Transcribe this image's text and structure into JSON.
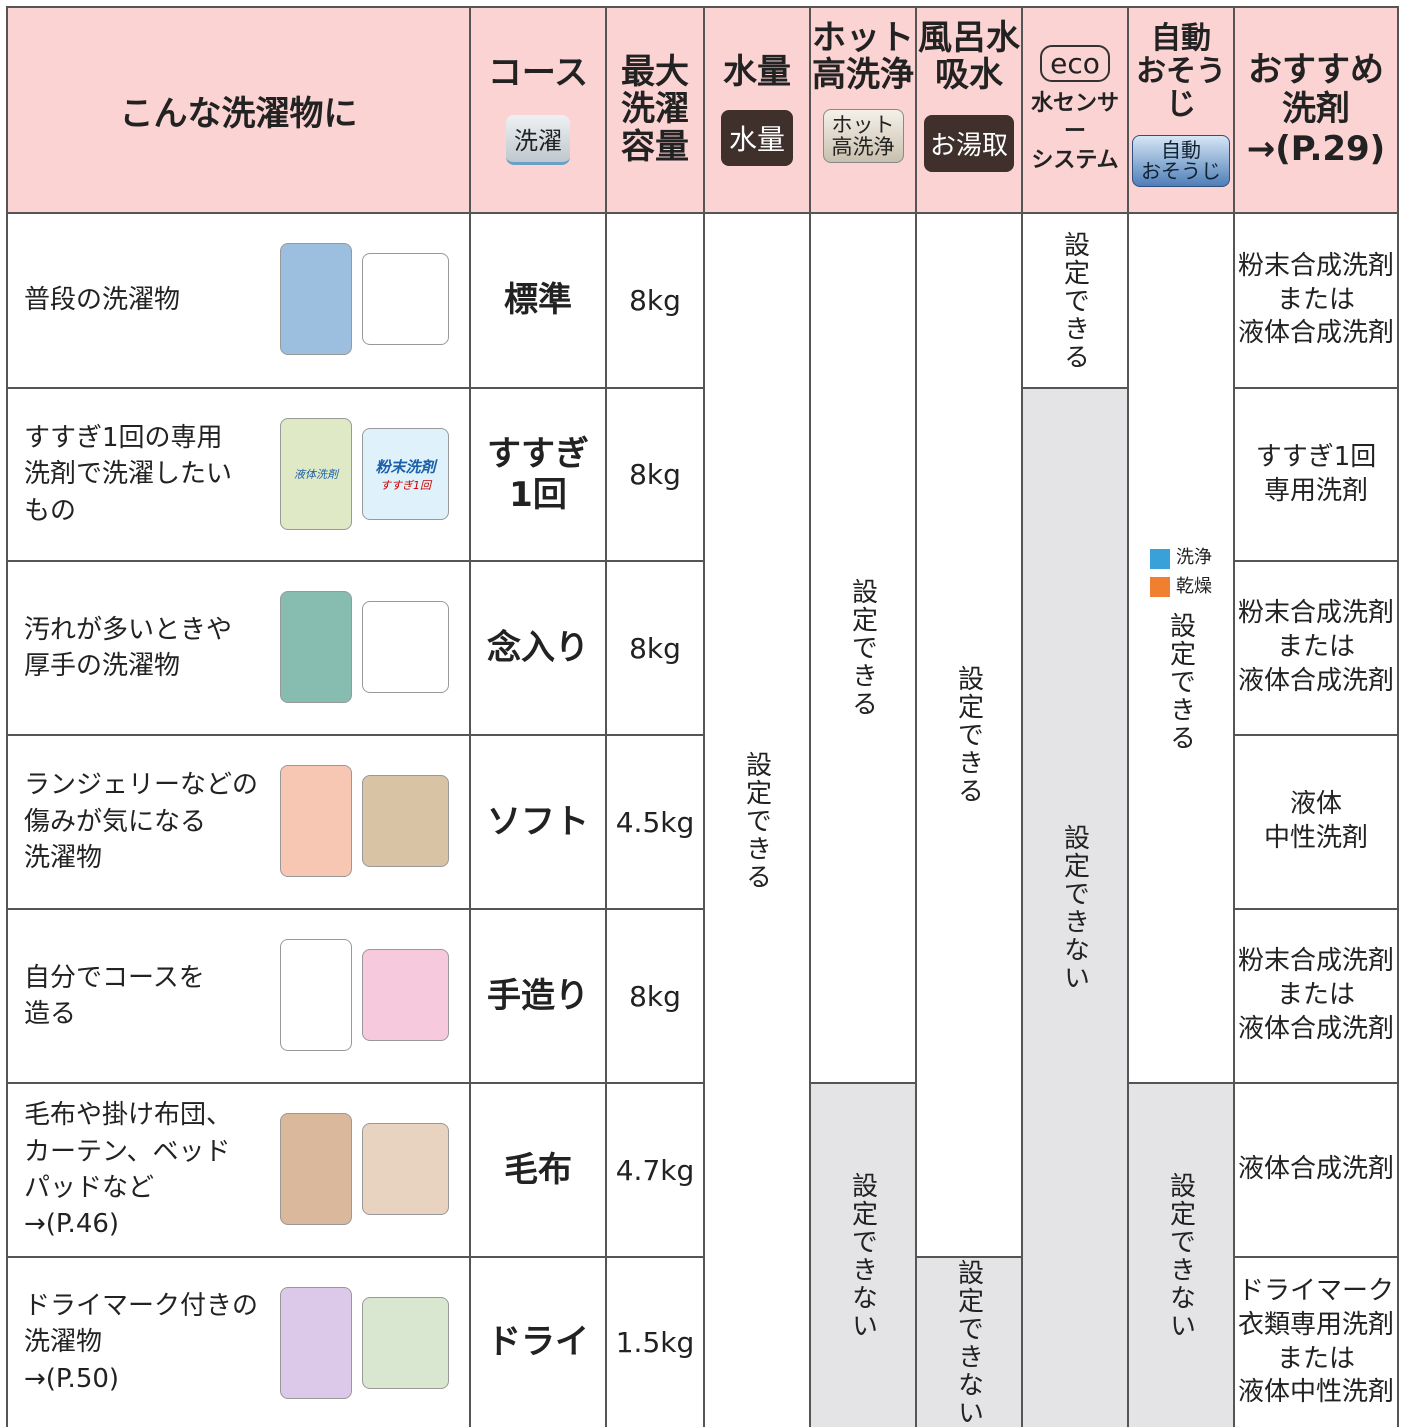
{
  "header": {
    "title": "こんな洗濯物に",
    "course": {
      "label": "コース",
      "button": "洗濯"
    },
    "capacity": {
      "label": [
        "最大",
        "洗濯",
        "容量"
      ]
    },
    "water": {
      "label": "水量",
      "button": "水量"
    },
    "hot": {
      "label": [
        "ホット",
        "高洗浄"
      ],
      "button": [
        "ホット",
        "高洗浄"
      ]
    },
    "bath": {
      "label": [
        "風呂水",
        "吸水"
      ],
      "button": "お湯取"
    },
    "eco": {
      "badge": "eco",
      "label": [
        "水センサー",
        "システム"
      ]
    },
    "auto": {
      "label": [
        "自動",
        "おそうじ"
      ],
      "button": [
        "自動",
        "おそうじ"
      ]
    },
    "detergent": {
      "label": [
        "おすすめ",
        "洗剤",
        "→(P.29)"
      ]
    }
  },
  "rows": [
    {
      "description": [
        "普段の洗濯物"
      ],
      "course": [
        "標準"
      ],
      "capacity": "8kg",
      "detergent": [
        "粉末合成洗剤",
        "または",
        "液体合成洗剤"
      ]
    },
    {
      "description": [
        "すすぎ1回の専用",
        "洗剤で洗濯したい",
        "もの"
      ],
      "course": [
        "すすぎ",
        "1回"
      ],
      "capacity": "8kg",
      "detergent": [
        "すすぎ1回",
        "専用洗剤"
      ],
      "illustration_labels": [
        "液体洗剤",
        "粉末洗剤",
        "すすぎ1回"
      ]
    },
    {
      "description": [
        "汚れが多いときや",
        "厚手の洗濯物"
      ],
      "course": [
        "念入り"
      ],
      "capacity": "8kg",
      "detergent": [
        "粉末合成洗剤",
        "または",
        "液体合成洗剤"
      ]
    },
    {
      "description": [
        "ランジェリーなどの",
        "傷みが気になる",
        "洗濯物"
      ],
      "course": [
        "ソフト"
      ],
      "capacity": "4.5kg",
      "detergent": [
        "液体",
        "中性洗剤"
      ]
    },
    {
      "description": [
        "自分でコースを",
        "造る"
      ],
      "course": [
        "手造り"
      ],
      "capacity": "8kg",
      "detergent": [
        "粉末合成洗剤",
        "または",
        "液体合成洗剤"
      ]
    },
    {
      "description": [
        "毛布や掛け布団、",
        "カーテン、ベッド",
        "パッドなど",
        "→(P.46)"
      ],
      "course": [
        "毛布"
      ],
      "capacity": "4.7kg",
      "detergent": [
        "液体合成洗剤"
      ]
    },
    {
      "description": [
        "ドライマーク付きの",
        "洗濯物",
        "→(P.50)"
      ],
      "course": [
        "ドライ"
      ],
      "capacity": "1.5kg",
      "detergent": [
        "ドライマーク",
        "衣類専用洗剤",
        "または",
        "液体中性洗剤"
      ]
    }
  ],
  "settings": {
    "water": [
      "設定できる"
    ],
    "hot": [
      "設定できる",
      "設定できない"
    ],
    "bath": [
      "設定できる",
      "設定できない"
    ],
    "eco": [
      "設定できる",
      "設定できない"
    ],
    "auto": [
      "設定できる",
      "設定できない"
    ],
    "auto_legend": [
      "洗浄",
      "乾燥"
    ]
  }
}
